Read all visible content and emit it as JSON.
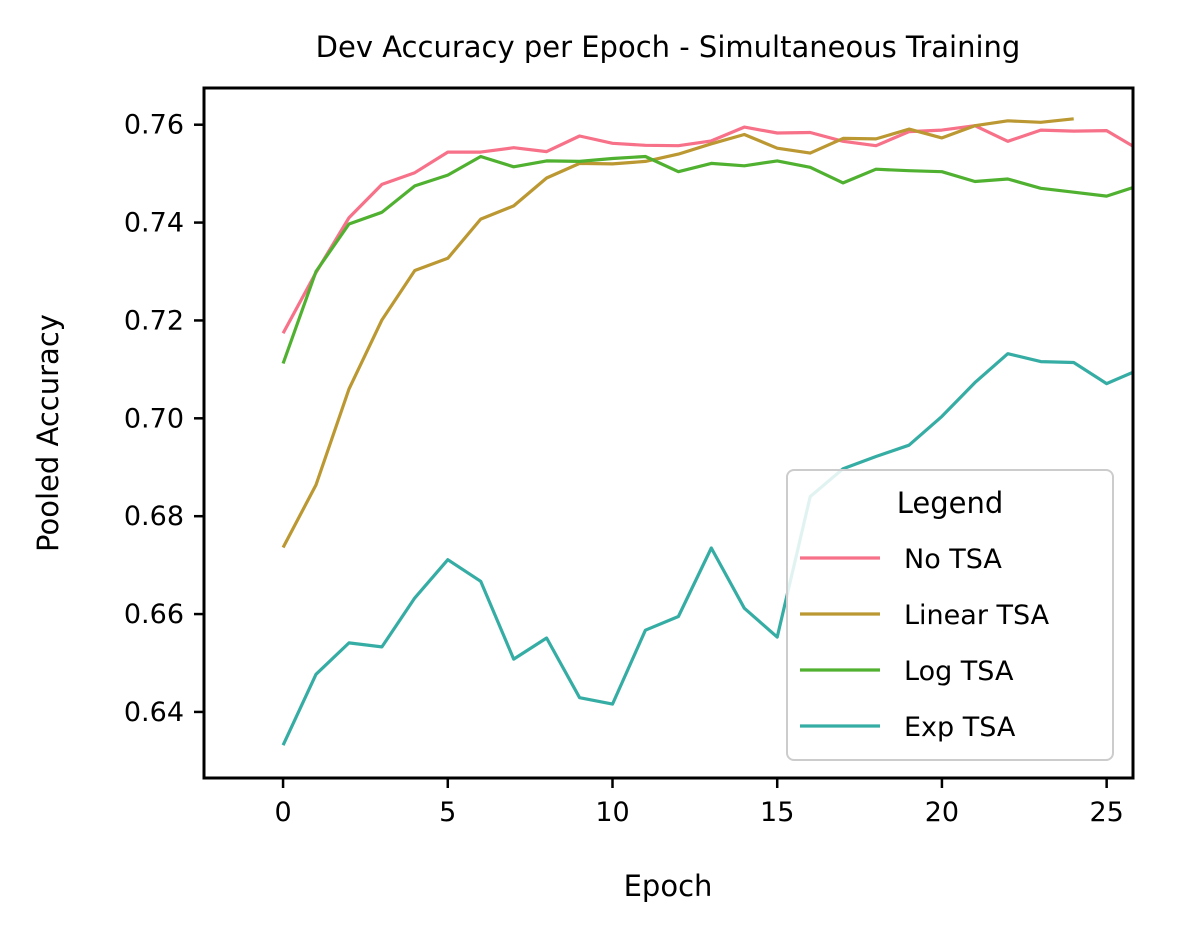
{
  "chart_data": {
    "type": "line",
    "title": "Dev Accuracy per Epoch - Simultaneous Training",
    "xlabel": "Epoch",
    "ylabel": "Pooled Accuracy",
    "xlim": [
      -2.4,
      25.8
    ],
    "ylim": [
      0.6265,
      0.7675
    ],
    "xticks": [
      0,
      5,
      10,
      15,
      20,
      25
    ],
    "xtick_labels": [
      "0",
      "5",
      "10",
      "15",
      "20",
      "25"
    ],
    "yticks": [
      0.64,
      0.66,
      0.68,
      0.7,
      0.72,
      0.74,
      0.76
    ],
    "ytick_labels": [
      "0.64",
      "0.66",
      "0.68",
      "0.70",
      "0.72",
      "0.74",
      "0.76"
    ],
    "grid": false,
    "legend": {
      "title": "Legend",
      "position": "lower-right"
    },
    "series": [
      {
        "name": "No TSA",
        "color": "#f77189",
        "x": [
          0,
          1,
          2,
          3,
          4,
          5,
          6,
          7,
          8,
          9,
          10,
          11,
          12,
          13,
          14,
          15,
          16,
          17,
          18,
          19,
          20,
          21,
          22,
          23,
          24,
          25,
          26
        ],
        "values": [
          0.7174,
          0.7298,
          0.741,
          0.7478,
          0.7502,
          0.7544,
          0.7544,
          0.7553,
          0.7545,
          0.7577,
          0.7562,
          0.7558,
          0.7557,
          0.7567,
          0.7595,
          0.7583,
          0.7584,
          0.7566,
          0.7557,
          0.7586,
          0.7589,
          0.7598,
          0.7566,
          0.7589,
          0.7587,
          0.7588,
          0.7548
        ]
      },
      {
        "name": "Linear TSA",
        "color": "#bb9832",
        "x": [
          0,
          1,
          2,
          3,
          4,
          5,
          6,
          7,
          8,
          9,
          10,
          11,
          12,
          13,
          14,
          15,
          16,
          17,
          18,
          19,
          20,
          21,
          22,
          23,
          24
        ],
        "values": [
          0.6736,
          0.6864,
          0.706,
          0.7201,
          0.7302,
          0.7327,
          0.7407,
          0.7434,
          0.7491,
          0.7521,
          0.752,
          0.7525,
          0.754,
          0.7561,
          0.758,
          0.7552,
          0.7542,
          0.7572,
          0.7571,
          0.7591,
          0.7573,
          0.7598,
          0.7608,
          0.7605,
          0.7612
        ]
      },
      {
        "name": "Log TSA",
        "color": "#50b131",
        "x": [
          0,
          1,
          2,
          3,
          4,
          5,
          6,
          7,
          8,
          9,
          10,
          11,
          12,
          13,
          14,
          15,
          16,
          17,
          18,
          19,
          20,
          21,
          22,
          23,
          24,
          25,
          26
        ],
        "values": [
          0.7112,
          0.73,
          0.7397,
          0.7421,
          0.7475,
          0.7497,
          0.7535,
          0.7514,
          0.7526,
          0.7525,
          0.7531,
          0.7535,
          0.7504,
          0.7521,
          0.7516,
          0.7526,
          0.7513,
          0.7481,
          0.7509,
          0.7506,
          0.7504,
          0.7484,
          0.7489,
          0.747,
          0.7462,
          0.7454,
          0.7476
        ]
      },
      {
        "name": "Exp TSA",
        "color": "#36ada4",
        "x": [
          0,
          1,
          2,
          3,
          4,
          5,
          6,
          7,
          8,
          9,
          10,
          11,
          12,
          13,
          14,
          15,
          16,
          17,
          18,
          19,
          20,
          21,
          22,
          23,
          24,
          25,
          26
        ],
        "values": [
          0.6332,
          0.6477,
          0.6541,
          0.6533,
          0.6633,
          0.6711,
          0.6667,
          0.6508,
          0.6551,
          0.6429,
          0.6416,
          0.6567,
          0.6595,
          0.6735,
          0.6612,
          0.6553,
          0.684,
          0.6897,
          0.6922,
          0.6945,
          0.7004,
          0.7073,
          0.7132,
          0.7116,
          0.7114,
          0.7071,
          0.71
        ]
      }
    ]
  }
}
